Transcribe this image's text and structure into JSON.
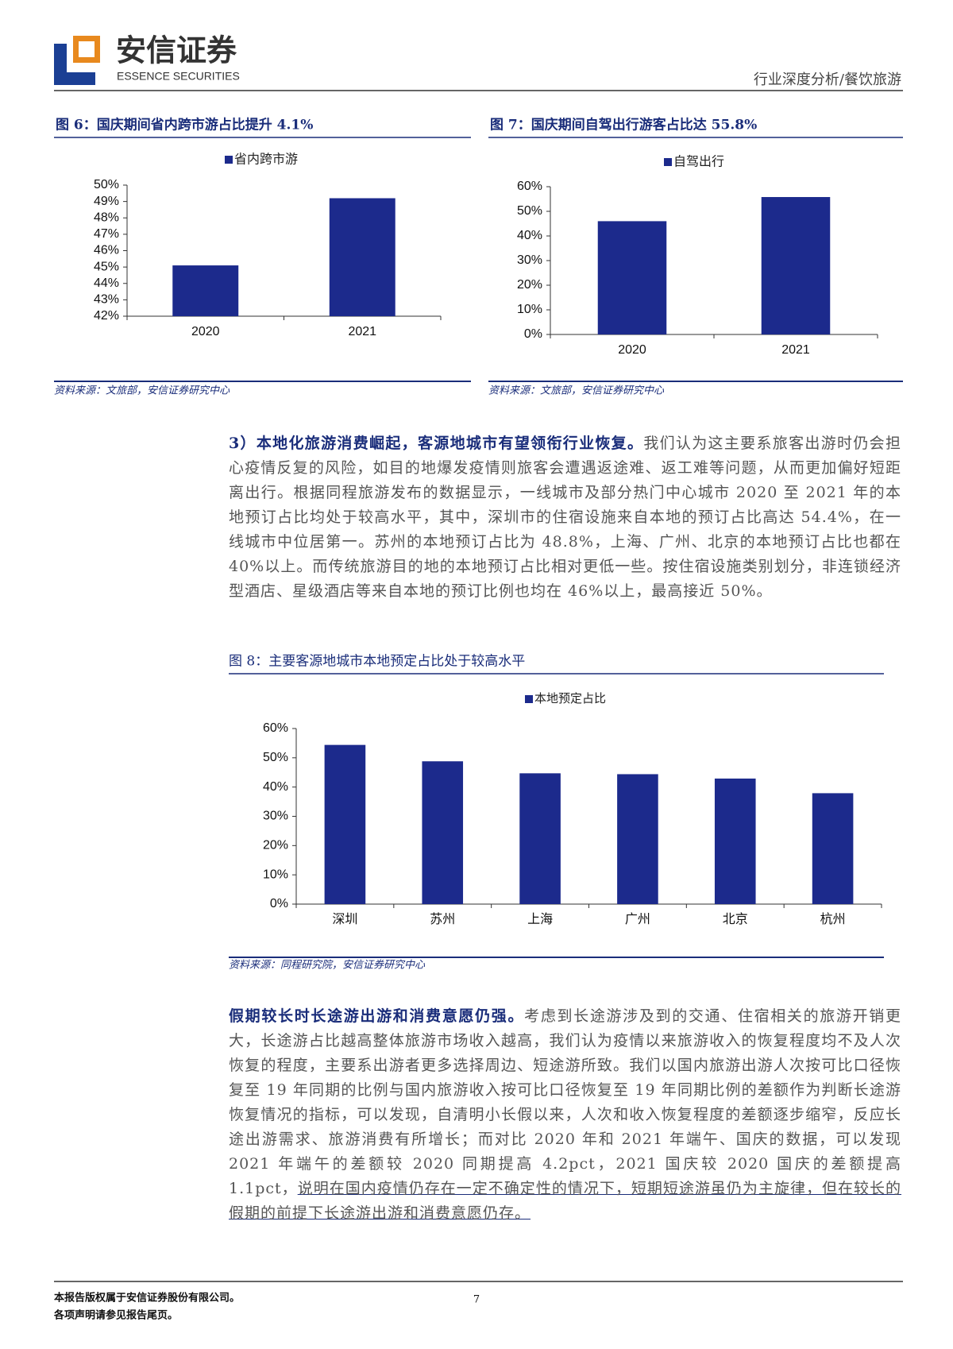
{
  "header": {
    "logo_cn": "安信证券",
    "logo_en": "ESSENCE SECURITIES",
    "section": "行业深度分析/餐饮旅游"
  },
  "chart_data": [
    {
      "type": "bar",
      "title": "图 6：国庆期间省内跨市游占比提升 4.1%",
      "source": "资料来源：文旅部，安信证券研究中心",
      "categories": [
        "2020",
        "2021"
      ],
      "series": [
        {
          "name": "省内跨市游",
          "color": "#1c2a8c",
          "values": [
            45.1,
            49.2
          ]
        }
      ],
      "ylim": [
        42,
        50
      ],
      "yticks": [
        {
          "value": 42,
          "label": "42%"
        },
        {
          "value": 43,
          "label": "43%"
        },
        {
          "value": 44,
          "label": "44%"
        },
        {
          "value": 45,
          "label": "45%"
        },
        {
          "value": 46,
          "label": "46%"
        },
        {
          "value": 47,
          "label": "47%"
        },
        {
          "value": 48,
          "label": "48%"
        },
        {
          "value": 49,
          "label": "49%"
        },
        {
          "value": 50,
          "label": "50%"
        }
      ],
      "grid": false
    },
    {
      "type": "bar",
      "title": "图 7：国庆期间自驾出行游客占比达 55.8%",
      "source": "资料来源：文旅部，安信证券研究中心",
      "categories": [
        "2020",
        "2021"
      ],
      "series": [
        {
          "name": "自驾出行",
          "color": "#1c2a8c",
          "values": [
            46,
            55.8
          ]
        }
      ],
      "ylim": [
        0,
        60
      ],
      "yticks": [
        {
          "value": 0,
          "label": "0%"
        },
        {
          "value": 10,
          "label": "10%"
        },
        {
          "value": 20,
          "label": "20%"
        },
        {
          "value": 30,
          "label": "30%"
        },
        {
          "value": 40,
          "label": "40%"
        },
        {
          "value": 50,
          "label": "50%"
        },
        {
          "value": 60,
          "label": "60%"
        }
      ],
      "grid": false
    },
    {
      "type": "bar",
      "title": "图 8：主要客源地城市本地预定占比处于较高水平",
      "source": "资料来源：同程研究院，安信证券研究中心",
      "categories": [
        "深圳",
        "苏州",
        "上海",
        "广州",
        "北京",
        "杭州"
      ],
      "series": [
        {
          "name": "本地预定占比",
          "color": "#1c2a8c",
          "values": [
            54.4,
            48.8,
            44.7,
            44.4,
            42.9,
            37.9
          ]
        }
      ],
      "ylim": [
        0,
        60
      ],
      "yticks": [
        {
          "value": 0,
          "label": "0%"
        },
        {
          "value": 10,
          "label": "10%"
        },
        {
          "value": 20,
          "label": "20%"
        },
        {
          "value": 30,
          "label": "30%"
        },
        {
          "value": 40,
          "label": "40%"
        },
        {
          "value": 50,
          "label": "50%"
        },
        {
          "value": 60,
          "label": "60%"
        }
      ],
      "grid": false
    }
  ],
  "paragraphs": [
    {
      "lead": "3）本地化旅游消费崛起，客源地城市有望领衔行业恢复。",
      "body": "我们认为这主要系旅客出游时仍会担心疫情反复的风险，如目的地爆发疫情则旅客会遭遇返途难、返工难等问题，从而更加偏好短距离出行。根据同程旅游发布的数据显示，一线城市及部分热门中心城市 2020 至 2021 年的本地预订占比均处于较高水平，其中，深圳市的住宿设施来自本地的预订占比高达 54.4%，在一线城市中位居第一。苏州的本地预订占比为 48.8%，上海、广州、北京的本地预订占比也都在 40%以上。而传统旅游目的地的本地预订占比相对更低一些。按住宿设施类别划分，非连锁经济型酒店、星级酒店等来自本地的预订比例也均在 46%以上，最高接近 50%。"
    },
    {
      "lead": "假期较长时长途游出游和消费意愿仍强。",
      "body": "考虑到长途游涉及到的交通、住宿相关的旅游开销更大，长途游占比越高整体旅游市场收入越高，我们认为疫情以来旅游收入的恢复程度均不及人次恢复的程度，主要系出游者更多选择周边、短途游所致。我们以国内旅游出游人次按可比口径恢复至 19 年同期的比例与国内旅游收入按可比口径恢复至 19 年同期比例的差额作为判断长途游恢复情况的指标，可以发现，自清明小长假以来，人次和收入恢复程度的差额逐步缩窄，反应长途出游需求、旅游消费有所增长；而对比 2020 年和 2021 年端午、国庆的数据，可以发现 2021 年端午的差额较 2020 同期提高 4.2pct，2021 国庆较 2020 国庆的差额提高 1.1pct，",
      "underlined": "说明在国内疫情仍存在一定不确定性的情况下，短期短途游虽仍为主旋律，但在较长的假期的前提下长途游出游和消费意愿仍存。"
    }
  ],
  "footer": {
    "copyright": "本报告版权属于安信证券股份有限公司。",
    "disclaimer": "各项声明请参见报告尾页。",
    "page": 7
  }
}
